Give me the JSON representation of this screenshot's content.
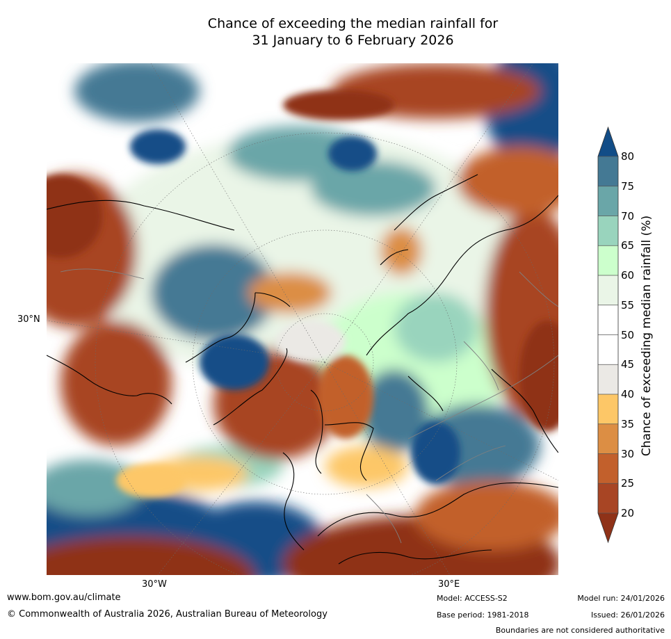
{
  "title": {
    "line1": "Chance of exceeding the median rainfall for",
    "line2": "31 January to 6 February 2026"
  },
  "map": {
    "projection": "north-polar-stereographic",
    "labels": {
      "lat_30n": "30°N",
      "lon_30w": "30°W",
      "lon_30e": "30°E"
    },
    "coastline_color": "#000000",
    "border_color": "#808080"
  },
  "colorbar": {
    "label": "Chance of exceeding median rainfall (%)",
    "ticks": [
      "80",
      "75",
      "70",
      "65",
      "60",
      "55",
      "50",
      "45",
      "40",
      "35",
      "30",
      "25",
      "20"
    ],
    "bins": [
      {
        "range": "<20",
        "color": "#8f3218"
      },
      {
        "range": "20-25",
        "color": "#a84524"
      },
      {
        "range": "25-30",
        "color": "#c2602c"
      },
      {
        "range": "30-35",
        "color": "#dc8e44"
      },
      {
        "range": "35-40",
        "color": "#fdc767"
      },
      {
        "range": "40-45",
        "color": "#ebe9e5"
      },
      {
        "range": "45-50",
        "color": "#ffffff"
      },
      {
        "range": "50-55",
        "color": "#ffffff"
      },
      {
        "range": "55-60",
        "color": "#eaf5e7"
      },
      {
        "range": "60-65",
        "color": "#ccffcc"
      },
      {
        "range": "65-70",
        "color": "#99d4bd"
      },
      {
        "range": "70-75",
        "color": "#6aa6a8"
      },
      {
        "range": "75-80",
        "color": "#447994"
      },
      {
        "range": ">80",
        "color": "#124d87"
      }
    ]
  },
  "footer": {
    "website": "www.bom.gov.au/climate",
    "copyright": "© Commonwealth of Australia 2026, Australian Bureau of Meteorology",
    "model": "Model: ACCESS-S2",
    "base_period": "Base period: 1981-2018",
    "model_run": "Model run: 24/01/2026",
    "issued": "Issued: 26/01/2026",
    "disclaimer": "Boundaries are not considered authoritative"
  }
}
